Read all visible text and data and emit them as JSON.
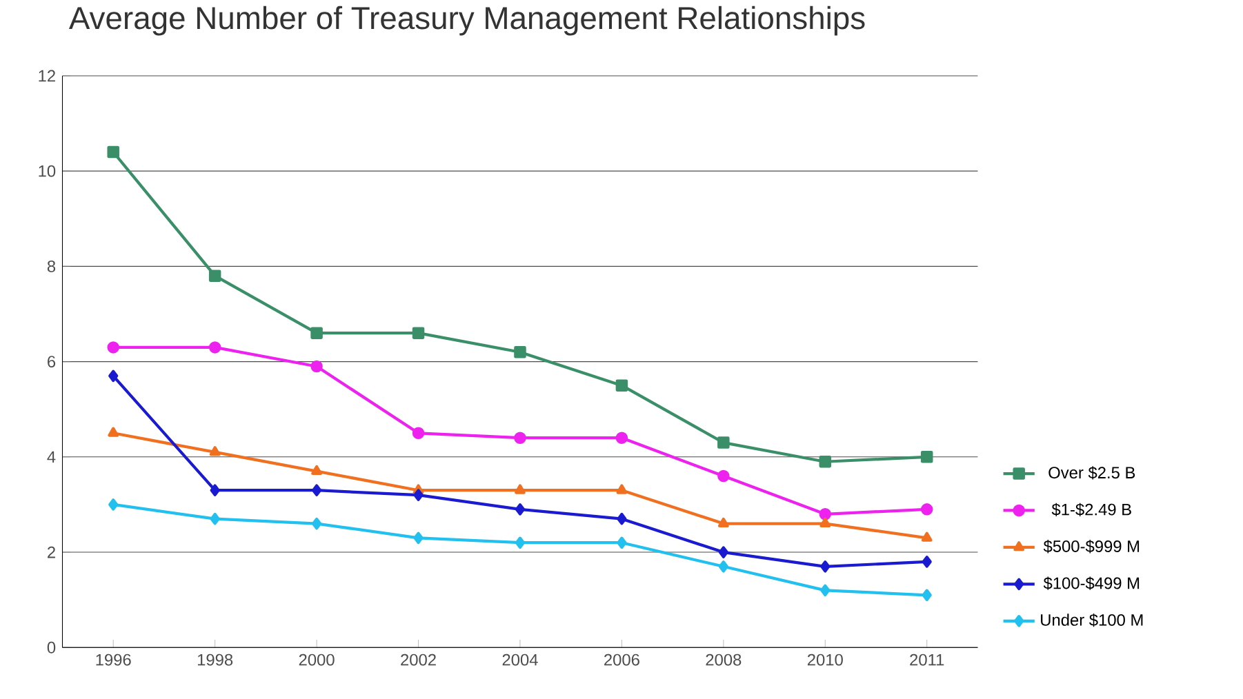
{
  "chart_data": {
    "type": "line",
    "title": "Average Number of Treasury Management Relationships",
    "categories": [
      "1996",
      "1998",
      "2000",
      "2002",
      "2004",
      "2006",
      "2008",
      "2010",
      "2011"
    ],
    "series": [
      {
        "name": "Over $2.5 B",
        "color": "#3a8f68",
        "marker": "square",
        "values": [
          10.4,
          7.8,
          6.6,
          6.6,
          6.2,
          5.5,
          4.3,
          3.9,
          4.0
        ]
      },
      {
        "name": "$1-$2.49 B",
        "color": "#ee22ee",
        "marker": "circle",
        "values": [
          6.3,
          6.3,
          5.9,
          4.5,
          4.4,
          4.4,
          3.6,
          2.8,
          2.9
        ]
      },
      {
        "name": "$500-$999 M",
        "color": "#f07020",
        "marker": "triangle",
        "values": [
          4.5,
          4.1,
          3.7,
          3.3,
          3.3,
          3.3,
          2.6,
          2.6,
          2.3
        ]
      },
      {
        "name": "$100-$499 M",
        "color": "#1a1ad0",
        "marker": "diamond",
        "values": [
          5.7,
          3.3,
          3.3,
          3.2,
          2.9,
          2.7,
          2.0,
          1.7,
          1.8
        ]
      },
      {
        "name": "Under $100 M",
        "color": "#22c0ee",
        "marker": "diamond",
        "values": [
          3.0,
          2.7,
          2.6,
          2.3,
          2.2,
          2.2,
          1.7,
          1.2,
          1.1
        ]
      }
    ],
    "ylim": [
      0,
      12
    ],
    "yticks": [
      0,
      2,
      4,
      6,
      8,
      10,
      12
    ],
    "grid": "y",
    "legend": "right",
    "line_style": "solid"
  }
}
